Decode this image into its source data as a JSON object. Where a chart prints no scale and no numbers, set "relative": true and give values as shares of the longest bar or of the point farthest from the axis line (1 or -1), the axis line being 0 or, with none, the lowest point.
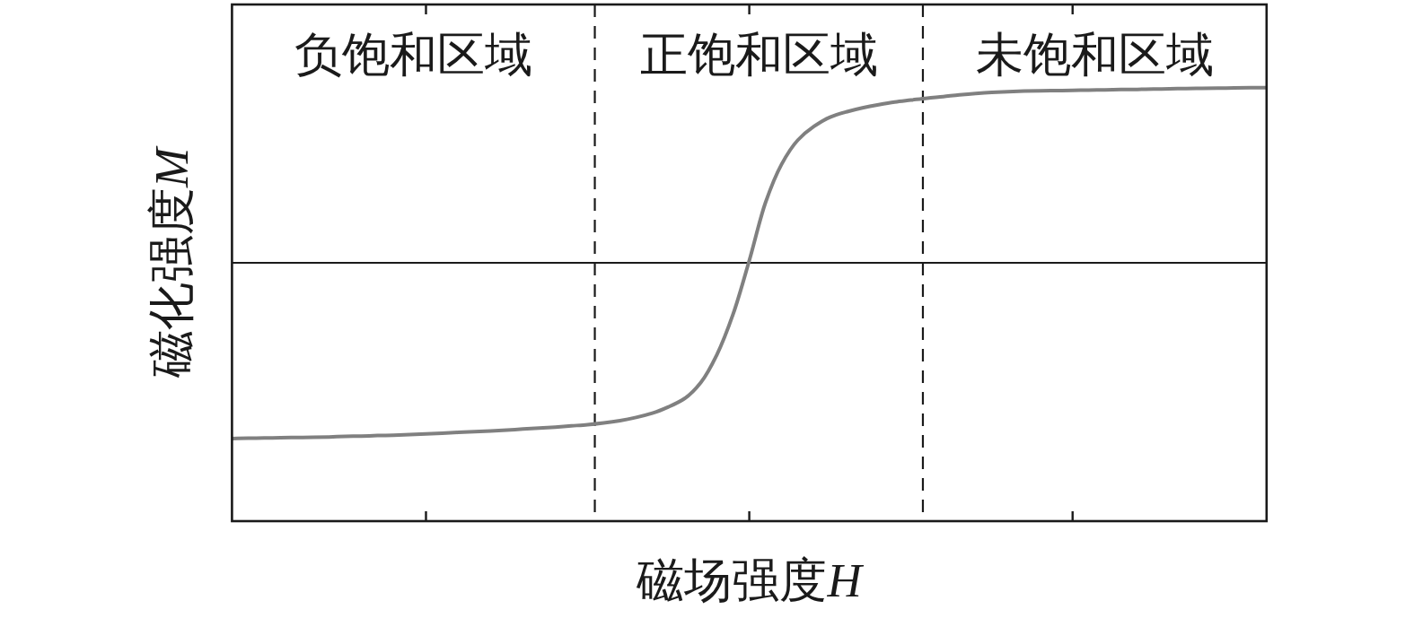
{
  "chart_data": {
    "type": "line",
    "relative": true,
    "xlabel": "磁场强度H",
    "ylabel": "磁化强度M",
    "categories": [
      null,
      null,
      null,
      null,
      null,
      null,
      null,
      null,
      null,
      null,
      null,
      null,
      null,
      null,
      null,
      null,
      null,
      null,
      null,
      null,
      null,
      null,
      null,
      null,
      null,
      null,
      null,
      null,
      null,
      null,
      null,
      null,
      null,
      null,
      null,
      null,
      null,
      null,
      null,
      null,
      null,
      null,
      null,
      null,
      null,
      null,
      null,
      null,
      null,
      null,
      null,
      null,
      null,
      null,
      null,
      null,
      null,
      null,
      null,
      null,
      null,
      null,
      null,
      null,
      null
    ],
    "series": [
      {
        "color": "#808080",
        "values": [
          -1.0,
          -0.998,
          -0.997,
          -0.995,
          -0.994,
          -0.993,
          -0.991,
          -0.988,
          -0.986,
          -0.983,
          -0.981,
          -0.978,
          -0.974,
          -0.97,
          -0.965,
          -0.961,
          -0.957,
          -0.952,
          -0.946,
          -0.941,
          -0.935,
          -0.928,
          -0.921,
          -0.911,
          -0.898,
          -0.88,
          -0.856,
          -0.82,
          -0.772,
          -0.681,
          -0.522,
          -0.292,
          0.013,
          0.342,
          0.561,
          0.698,
          0.776,
          0.829,
          0.859,
          0.882,
          0.9,
          0.915,
          0.926,
          0.937,
          0.946,
          0.956,
          0.964,
          0.97,
          0.974,
          0.977,
          0.979,
          0.98,
          0.981,
          0.983,
          0.984,
          0.986,
          0.987,
          0.989,
          0.99,
          0.992,
          0.993,
          0.994,
          0.995,
          0.996,
          0.997
        ]
      }
    ],
    "annotations": [
      "负饱和区域",
      "正饱和区域",
      "未饱和区域"
    ]
  }
}
